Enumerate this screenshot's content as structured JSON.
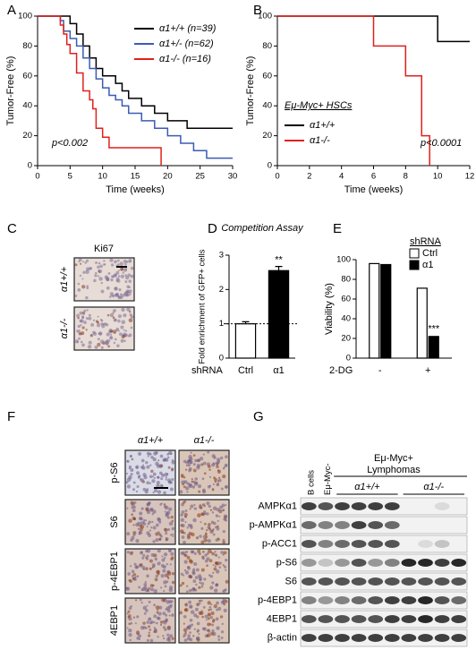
{
  "chart_data": [
    {
      "type": "line",
      "step": true,
      "label": "A",
      "xlabel": "Time (weeks)",
      "ylabel": "Tumor-Free (%)",
      "xlim": [
        0,
        30
      ],
      "xticks": [
        0,
        5,
        10,
        15,
        20,
        25,
        30
      ],
      "ylim": [
        0,
        100
      ],
      "yticks": [
        0,
        20,
        40,
        60,
        80,
        100
      ],
      "annotation": "p<0.002",
      "legend": "upper right",
      "series": [
        {
          "name": "α1+/+ (n=39)",
          "color": "#000000",
          "x": [
            0,
            4,
            5,
            6,
            7,
            8,
            9,
            10,
            12,
            13,
            14,
            16,
            18,
            20,
            23,
            30
          ],
          "values": [
            100,
            100,
            95,
            88,
            80,
            72,
            65,
            60,
            55,
            50,
            45,
            40,
            35,
            30,
            25,
            25
          ]
        },
        {
          "name": "α1+/- (n=62)",
          "color": "#3b5bb5",
          "x": [
            0,
            3,
            3.5,
            4,
            5,
            6,
            7,
            8,
            9,
            10,
            11,
            12,
            13,
            14,
            16,
            18,
            20,
            22,
            24,
            26,
            30
          ],
          "values": [
            100,
            100,
            97,
            90,
            85,
            80,
            72,
            65,
            58,
            52,
            47,
            44,
            40,
            35,
            30,
            25,
            20,
            15,
            10,
            5,
            5
          ]
        },
        {
          "name": "α1-/- (n=16)",
          "color": "#e0201b",
          "x": [
            0,
            3.5,
            4,
            4.5,
            5,
            6,
            7,
            8,
            8.5,
            9,
            10,
            11,
            19
          ],
          "values": [
            100,
            94,
            88,
            81,
            75,
            62,
            50,
            44,
            38,
            25,
            19,
            12,
            0
          ]
        }
      ]
    },
    {
      "type": "line",
      "step": true,
      "label": "B",
      "xlabel": "Time (weeks)",
      "ylabel": "Tumor-Free (%)",
      "xlim": [
        0,
        12
      ],
      "xticks": [
        0,
        2,
        4,
        6,
        8,
        10,
        12
      ],
      "ylim": [
        0,
        100
      ],
      "yticks": [
        0,
        20,
        40,
        60,
        80,
        100
      ],
      "annotation": "p<0.0001",
      "legend": "lower left",
      "legend_title": "Eμ-Myc+ HSCs",
      "series": [
        {
          "name": "α1+/+",
          "color": "#000000",
          "x": [
            0,
            10,
            12
          ],
          "values": [
            100,
            83,
            83
          ]
        },
        {
          "name": "α1-/-",
          "color": "#e0201b",
          "x": [
            0,
            6,
            8,
            9,
            9.5
          ],
          "values": [
            100,
            80,
            60,
            20,
            0
          ]
        }
      ]
    },
    {
      "type": "bar",
      "label": "D",
      "title": "Competition Assay",
      "ylabel": "Fold enrichment of GFP+ cells",
      "xlabel": "shRNA",
      "categories": [
        "Ctrl",
        "α1"
      ],
      "values": [
        1,
        2.55
      ],
      "errors": [
        0.06,
        0.12
      ],
      "colors": [
        "#ffffff",
        "#000000"
      ],
      "ylim": [
        0,
        3
      ],
      "yticks": [
        0,
        1,
        2,
        3
      ],
      "reference_line": 1,
      "annotation": "**"
    },
    {
      "type": "grouped_bar",
      "label": "E",
      "ylabel": "Viability (%)",
      "xlabel": "2-DG",
      "legend_title": "shRNA",
      "categories": [
        "-",
        "+"
      ],
      "ylim": [
        0,
        100
      ],
      "yticks": [
        0,
        20,
        40,
        60,
        80,
        100
      ],
      "annotation": "***",
      "series": [
        {
          "name": "Ctrl",
          "color": "#ffffff",
          "values": [
            96,
            71
          ]
        },
        {
          "name": "α1",
          "color": "#000000",
          "values": [
            95,
            22
          ]
        }
      ]
    }
  ],
  "panel_c": {
    "label": "C",
    "title": "Ki67",
    "rows": [
      "α1+/+",
      "α1-/-"
    ]
  },
  "panel_f": {
    "label": "F",
    "columns": [
      "α1+/+",
      "α1-/-"
    ],
    "rows": [
      "p-S6",
      "S6",
      "p-4EBP1",
      "4EBP1"
    ]
  },
  "panel_g": {
    "label": "G",
    "controls": [
      "B cells",
      "Eμ-Myc-"
    ],
    "group_title": [
      "Eμ-Myc+",
      "Lymphomas"
    ],
    "groups": [
      "α1+/+",
      "α1-/-"
    ],
    "rows": [
      "AMPKα1",
      "p-AMPKα1",
      "p-ACC1",
      "p-S6",
      "S6",
      "p-4EBP1",
      "4EBP1",
      "β-actin"
    ]
  }
}
